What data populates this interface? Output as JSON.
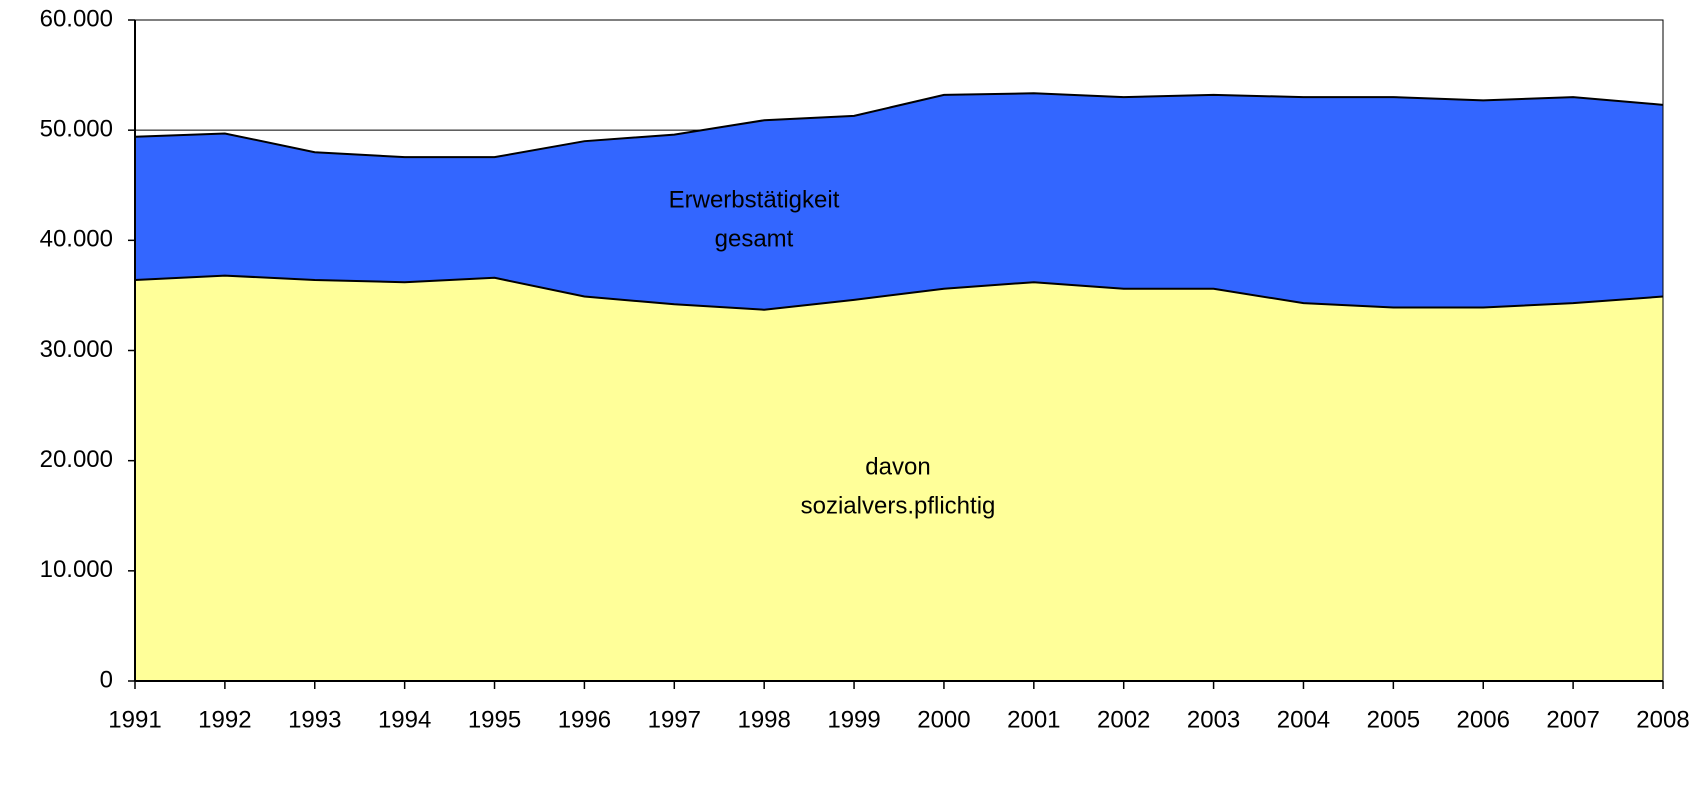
{
  "chart_data": {
    "type": "area",
    "categories": [
      "1991",
      "1992",
      "1993",
      "1994",
      "1995",
      "1996",
      "1997",
      "1998",
      "1999",
      "2000",
      "2001",
      "2002",
      "2003",
      "2004",
      "2005",
      "2006",
      "2007",
      "2008"
    ],
    "series": [
      {
        "label_lines": [
          "Erwerbstätigkeit",
          "gesamt"
        ],
        "color": "#3366ff",
        "values": [
          49400,
          49700,
          48000,
          47550,
          47550,
          49000,
          49600,
          50900,
          51300,
          53200,
          53350,
          53000,
          53200,
          53000,
          53000,
          52700,
          53000,
          52300
        ]
      },
      {
        "label_lines": [
          "davon",
          "sozialvers.pflichtig"
        ],
        "color": "#ffff99",
        "values": [
          36400,
          36800,
          36400,
          36200,
          36600,
          34900,
          34200,
          33700,
          34600,
          35600,
          36200,
          35600,
          35600,
          34300,
          33900,
          33900,
          34300,
          34900
        ]
      }
    ],
    "ylim": [
      0,
      60000
    ],
    "yticks": [
      0,
      {
        "value": 10000,
        "label": "10.000"
      },
      {
        "value": 20000,
        "label": "20.000"
      },
      {
        "value": 30000,
        "label": "30.000"
      },
      {
        "value": 40000,
        "label": "40.000"
      },
      {
        "value": 50000,
        "label": "50.000"
      },
      {
        "value": 60000,
        "label": "60.000"
      }
    ],
    "grid": true
  }
}
